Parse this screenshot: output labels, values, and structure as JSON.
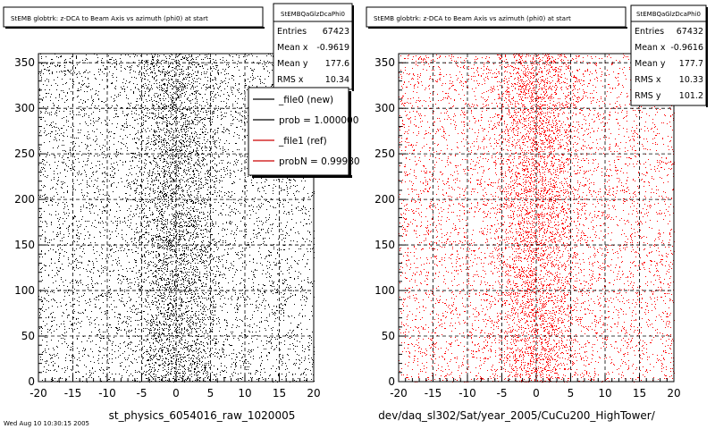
{
  "footer_date": "Wed Aug 10 10:30:15 2005",
  "chart_data": [
    {
      "type": "scatter",
      "title": "StEMB globtrk: z-DCA to Beam Axis vs azimuth (phi0) at start",
      "xlabel": "st_physics_6054016_raw_1020005",
      "ylabel": "",
      "xlim": [
        -20,
        20
      ],
      "ylim": [
        0,
        360
      ],
      "xticks": [
        -20,
        -15,
        -10,
        -5,
        0,
        5,
        10,
        15,
        20
      ],
      "yticks": [
        0,
        50,
        100,
        150,
        200,
        250,
        300,
        350
      ],
      "grid": true,
      "point_color": "#000000",
      "density_note": "uniform dense scatter, denser near x = 0",
      "stats_box": {
        "name": "StEMBQaGlzDcaPhi0",
        "rows": [
          {
            "label": "Entries",
            "value": "67423"
          },
          {
            "label": "Mean x",
            "value": "-0.9619"
          },
          {
            "label": "Mean y",
            "value": "177.6"
          },
          {
            "label": "RMS x",
            "value": "10.34"
          }
        ]
      },
      "legend": {
        "position": "right",
        "entries": [
          {
            "label": "_file0 (new)",
            "color": "#000000"
          },
          {
            "label": "prob = 1.000000",
            "color": "#000000"
          },
          {
            "label": "_file1 (ref)",
            "color": "#cc0000"
          },
          {
            "label": "probN = 0.99980",
            "color": "#cc0000"
          }
        ]
      }
    },
    {
      "type": "scatter",
      "title": "StEMB globtrk: z-DCA to Beam Axis vs azimuth (phi0) at start",
      "xlabel": "dev/daq_sl302/Sat/year_2005/CuCu200_HighTower/",
      "ylabel": "",
      "xlim": [
        -20,
        20
      ],
      "ylim": [
        0,
        360
      ],
      "xticks": [
        -20,
        -15,
        -10,
        -5,
        0,
        5,
        10,
        15,
        20
      ],
      "yticks": [
        0,
        50,
        100,
        150,
        200,
        250,
        300,
        350
      ],
      "grid": true,
      "point_color": "#ff0000",
      "density_note": "uniform dense scatter, denser near x = 0",
      "stats_box": {
        "name": "StEMBQaGlzDcaPhi0",
        "rows": [
          {
            "label": "Entries",
            "value": "67432"
          },
          {
            "label": "Mean x",
            "value": "-0.9616"
          },
          {
            "label": "Mean y",
            "value": "177.7"
          },
          {
            "label": "RMS x",
            "value": "10.33"
          },
          {
            "label": "RMS y",
            "value": "101.2"
          }
        ]
      }
    }
  ]
}
